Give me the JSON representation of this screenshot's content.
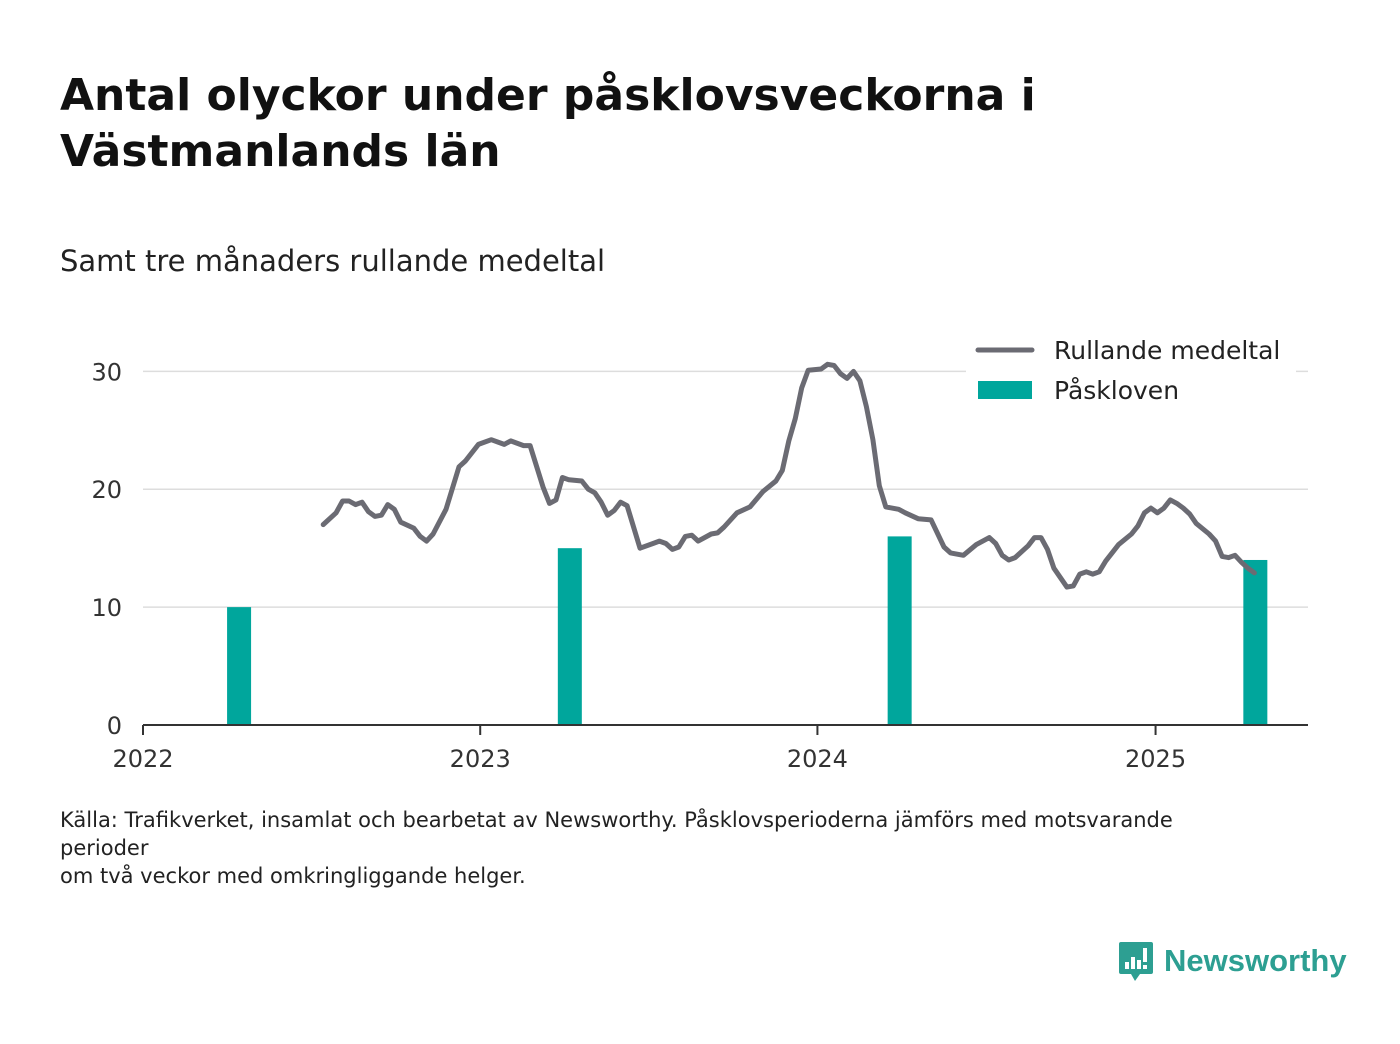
{
  "title": "Antal olyckor under påsklovsveckorna i Västmanlands län",
  "subtitle": "Samt tre månaders rullande medeltal",
  "source": "Källa: Trafikverket, insamlat och bearbetat av Newsworthy. Påsklovsperioderna jämförs med motsvarande perioder\nom två veckor med omkringliggande helger.",
  "logo": {
    "name": "Newsworthy",
    "icon": "bar-chart-speech-bubble-icon"
  },
  "colors": {
    "line": "#6b6b73",
    "bar": "#00a69c",
    "grid": "#dddddd",
    "axis": "#333333",
    "brand": "#2d9f92"
  },
  "chart_data": {
    "type": "bar+line",
    "x_axis": {
      "type": "date",
      "min": "2022-01-01",
      "max": "2025-06-15",
      "ticks": [
        "2022",
        "2023",
        "2024",
        "2025"
      ]
    },
    "y_axis": {
      "min": 0,
      "max": 33,
      "ticks": [
        0,
        10,
        20,
        30
      ]
    },
    "grid": true,
    "legend": {
      "position": "top-right",
      "entries": [
        {
          "label": "Rullande medeltal",
          "type": "line"
        },
        {
          "label": "Påskloven",
          "type": "bar"
        }
      ]
    },
    "bars": {
      "name": "Påskloven",
      "points": [
        {
          "x": "2022-04-15",
          "y": 10
        },
        {
          "x": "2023-04-08",
          "y": 15
        },
        {
          "x": "2024-03-30",
          "y": 16
        },
        {
          "x": "2025-04-19",
          "y": 14
        }
      ]
    },
    "line": {
      "name": "Rullande medeltal",
      "points": [
        [
          "2022-07-15",
          17.0
        ],
        [
          "2022-07-29",
          18.0
        ],
        [
          "2022-08-05",
          19.0
        ],
        [
          "2022-08-12",
          19.0
        ],
        [
          "2022-08-19",
          18.7
        ],
        [
          "2022-08-26",
          18.9
        ],
        [
          "2022-09-02",
          18.1
        ],
        [
          "2022-09-09",
          17.7
        ],
        [
          "2022-09-16",
          17.8
        ],
        [
          "2022-09-23",
          18.7
        ],
        [
          "2022-09-30",
          18.3
        ],
        [
          "2022-10-07",
          17.2
        ],
        [
          "2022-10-21",
          16.7
        ],
        [
          "2022-10-28",
          16.0
        ],
        [
          "2022-11-04",
          15.6
        ],
        [
          "2022-11-11",
          16.2
        ],
        [
          "2022-11-25",
          18.3
        ],
        [
          "2022-12-09",
          21.9
        ],
        [
          "2022-12-16",
          22.4
        ],
        [
          "2022-12-30",
          23.8
        ],
        [
          "2023-01-13",
          24.2
        ],
        [
          "2023-01-27",
          23.8
        ],
        [
          "2023-02-03",
          24.1
        ],
        [
          "2023-02-17",
          23.7
        ],
        [
          "2023-02-24",
          23.7
        ],
        [
          "2023-03-10",
          20.2
        ],
        [
          "2023-03-17",
          18.8
        ],
        [
          "2023-03-24",
          19.1
        ],
        [
          "2023-03-31",
          21.0
        ],
        [
          "2023-04-07",
          20.8
        ],
        [
          "2023-04-21",
          20.7
        ],
        [
          "2023-04-28",
          20.0
        ],
        [
          "2023-05-05",
          19.7
        ],
        [
          "2023-05-12",
          18.9
        ],
        [
          "2023-05-19",
          17.8
        ],
        [
          "2023-05-26",
          18.2
        ],
        [
          "2023-06-02",
          18.9
        ],
        [
          "2023-06-09",
          18.6
        ],
        [
          "2023-06-23",
          15.0
        ],
        [
          "2023-07-07",
          15.4
        ],
        [
          "2023-07-14",
          15.6
        ],
        [
          "2023-07-21",
          15.4
        ],
        [
          "2023-07-28",
          14.9
        ],
        [
          "2023-08-04",
          15.1
        ],
        [
          "2023-08-11",
          16.0
        ],
        [
          "2023-08-18",
          16.1
        ],
        [
          "2023-08-25",
          15.6
        ],
        [
          "2023-09-08",
          16.2
        ],
        [
          "2023-09-15",
          16.3
        ],
        [
          "2023-09-22",
          16.8
        ],
        [
          "2023-10-06",
          18.0
        ],
        [
          "2023-10-20",
          18.5
        ],
        [
          "2023-11-03",
          19.8
        ],
        [
          "2023-11-17",
          20.7
        ],
        [
          "2023-11-24",
          21.6
        ],
        [
          "2023-12-01",
          24.1
        ],
        [
          "2023-12-08",
          26.0
        ],
        [
          "2023-12-15",
          28.6
        ],
        [
          "2023-12-22",
          30.1
        ],
        [
          "2024-01-05",
          30.2
        ],
        [
          "2024-01-12",
          30.6
        ],
        [
          "2024-01-19",
          30.5
        ],
        [
          "2024-01-26",
          29.8
        ],
        [
          "2024-02-02",
          29.4
        ],
        [
          "2024-02-09",
          30.0
        ],
        [
          "2024-02-16",
          29.2
        ],
        [
          "2024-02-23",
          27.0
        ],
        [
          "2024-03-01",
          24.2
        ],
        [
          "2024-03-08",
          20.3
        ],
        [
          "2024-03-15",
          18.5
        ],
        [
          "2024-03-29",
          18.3
        ],
        [
          "2024-04-05",
          18.0
        ],
        [
          "2024-04-19",
          17.5
        ],
        [
          "2024-05-03",
          17.4
        ],
        [
          "2024-05-17",
          15.1
        ],
        [
          "2024-05-24",
          14.6
        ],
        [
          "2024-06-07",
          14.4
        ],
        [
          "2024-06-21",
          15.3
        ],
        [
          "2024-07-05",
          15.9
        ],
        [
          "2024-07-12",
          15.4
        ],
        [
          "2024-07-19",
          14.4
        ],
        [
          "2024-07-26",
          14.0
        ],
        [
          "2024-08-02",
          14.2
        ],
        [
          "2024-08-16",
          15.2
        ],
        [
          "2024-08-23",
          15.9
        ],
        [
          "2024-08-30",
          15.9
        ],
        [
          "2024-09-06",
          14.9
        ],
        [
          "2024-09-13",
          13.3
        ],
        [
          "2024-09-27",
          11.7
        ],
        [
          "2024-10-04",
          11.8
        ],
        [
          "2024-10-11",
          12.8
        ],
        [
          "2024-10-18",
          13.0
        ],
        [
          "2024-10-25",
          12.8
        ],
        [
          "2024-11-01",
          13.0
        ],
        [
          "2024-11-08",
          13.9
        ],
        [
          "2024-11-22",
          15.3
        ],
        [
          "2024-12-06",
          16.2
        ],
        [
          "2024-12-13",
          16.9
        ],
        [
          "2024-12-20",
          18.0
        ],
        [
          "2024-12-27",
          18.4
        ],
        [
          "2025-01-03",
          18.0
        ],
        [
          "2025-01-10",
          18.4
        ],
        [
          "2025-01-17",
          19.1
        ],
        [
          "2025-01-24",
          18.8
        ],
        [
          "2025-01-31",
          18.4
        ],
        [
          "2025-02-07",
          17.9
        ],
        [
          "2025-02-14",
          17.1
        ],
        [
          "2025-02-28",
          16.2
        ],
        [
          "2025-03-07",
          15.6
        ],
        [
          "2025-03-14",
          14.3
        ],
        [
          "2025-03-21",
          14.2
        ],
        [
          "2025-03-28",
          14.4
        ],
        [
          "2025-04-04",
          13.8
        ],
        [
          "2025-04-11",
          13.3
        ],
        [
          "2025-04-18",
          12.9
        ]
      ]
    }
  }
}
